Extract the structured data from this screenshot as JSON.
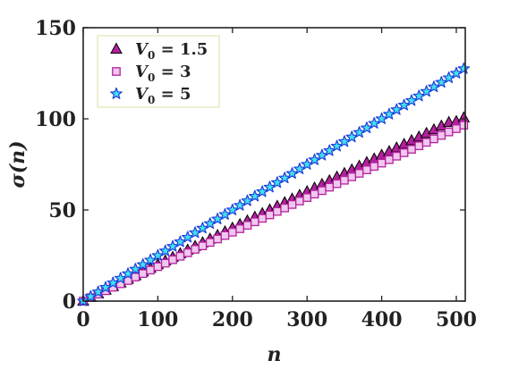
{
  "chart_data": {
    "type": "scatter",
    "xlabel": "n",
    "ylabel": "σ(n)",
    "xlim": [
      0,
      512
    ],
    "ylim": [
      0,
      150
    ],
    "xticks": [
      0,
      100,
      200,
      300,
      400,
      500
    ],
    "yticks": [
      0,
      50,
      100,
      150
    ],
    "grid": false,
    "legend_position": "top-left",
    "series": [
      {
        "name": "V0 = 1.5",
        "legend_label": "V0 = 1.5",
        "legend_base": "V",
        "legend_sub": "0",
        "legend_value": " = 1.5",
        "marker": "triangle",
        "face_color": "#b4209e",
        "edge_color": "#000000",
        "x": [
          0,
          10,
          20,
          30,
          40,
          50,
          60,
          70,
          80,
          90,
          100,
          110,
          120,
          130,
          140,
          150,
          160,
          170,
          180,
          190,
          200,
          210,
          220,
          230,
          240,
          250,
          260,
          270,
          280,
          290,
          300,
          310,
          320,
          330,
          340,
          350,
          360,
          370,
          380,
          390,
          400,
          410,
          420,
          430,
          440,
          450,
          460,
          470,
          480,
          490,
          500,
          510
        ],
        "y": [
          0,
          2,
          4,
          6,
          8,
          10,
          12,
          14,
          16,
          18,
          20,
          22,
          24,
          26,
          28,
          30,
          32,
          34,
          36,
          38,
          40,
          42,
          44,
          46,
          48,
          50,
          52,
          54,
          56,
          58,
          60,
          62,
          64,
          66,
          68,
          70,
          72,
          74,
          76,
          78,
          80,
          82,
          84,
          86,
          88,
          90,
          92,
          94,
          96,
          98,
          98.5,
          100.5
        ]
      },
      {
        "name": "V0 = 3",
        "legend_label": "V0 = 3",
        "legend_base": "V",
        "legend_sub": "0",
        "legend_value": " = 3",
        "marker": "square",
        "face_color": "#f0c8ee",
        "edge_color": "#b4209e",
        "x": [
          0,
          10,
          20,
          30,
          40,
          50,
          60,
          70,
          80,
          90,
          100,
          110,
          120,
          130,
          140,
          150,
          160,
          170,
          180,
          190,
          200,
          210,
          220,
          230,
          240,
          250,
          260,
          270,
          280,
          290,
          300,
          310,
          320,
          330,
          340,
          350,
          360,
          370,
          380,
          390,
          400,
          410,
          420,
          430,
          440,
          450,
          460,
          470,
          480,
          490,
          500,
          510
        ],
        "y": [
          0,
          1.9,
          3.8,
          5.7,
          7.6,
          9.5,
          11.3,
          13.2,
          15.1,
          17,
          18.9,
          20.8,
          22.7,
          24.6,
          26.5,
          28.4,
          30.3,
          32.2,
          34.1,
          36,
          37.8,
          39.7,
          41.6,
          43.5,
          45.4,
          47.3,
          49.2,
          51.1,
          53,
          54.9,
          56.8,
          58.7,
          60.6,
          62.5,
          64.4,
          66.3,
          68.2,
          70.1,
          72,
          73.9,
          75.7,
          77.6,
          79.5,
          81.4,
          83.3,
          85.2,
          87.1,
          89,
          90.9,
          92.8,
          94.6,
          96.5
        ]
      },
      {
        "name": "V0 = 5",
        "legend_label": "V0 = 5",
        "legend_base": "V",
        "legend_sub": "0",
        "legend_value": " = 5",
        "marker": "star",
        "face_color": "#40e0f0",
        "edge_color": "#1f3fdc",
        "x": [
          0,
          10,
          20,
          30,
          40,
          50,
          60,
          70,
          80,
          90,
          100,
          110,
          120,
          130,
          140,
          150,
          160,
          170,
          180,
          190,
          200,
          210,
          220,
          230,
          240,
          250,
          260,
          270,
          280,
          290,
          300,
          310,
          320,
          330,
          340,
          350,
          360,
          370,
          380,
          390,
          400,
          410,
          420,
          430,
          440,
          450,
          460,
          470,
          480,
          490,
          500,
          510
        ],
        "y": [
          0,
          2.5,
          5,
          7.5,
          10,
          12.5,
          15,
          17.5,
          20,
          22.5,
          25,
          27.5,
          30,
          32.5,
          35,
          37.5,
          40,
          42.5,
          45,
          47.5,
          50,
          52.5,
          55,
          57.5,
          60,
          62.5,
          65,
          67.5,
          70,
          72.5,
          75,
          77.5,
          80,
          82.5,
          85,
          87.5,
          90,
          92.5,
          95,
          97.5,
          100,
          102.5,
          105,
          107.5,
          110,
          112.5,
          115,
          117.5,
          120,
          122.5,
          125,
          127.5
        ]
      }
    ]
  }
}
